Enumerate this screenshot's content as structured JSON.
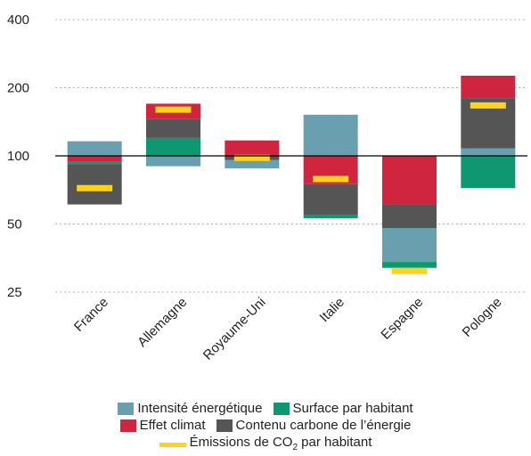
{
  "chart_data": {
    "type": "bar",
    "y_scale": "log",
    "ylim": [
      25,
      400
    ],
    "y_ticks": [
      "25",
      "50",
      "100",
      "200",
      "400"
    ],
    "y_tick_values": [
      25,
      50,
      100,
      200,
      400
    ],
    "baseline": 100,
    "categories": [
      "France",
      "Allemagne",
      "Royaume-Uni",
      "Italie",
      "Espagne",
      "Pologne"
    ],
    "series": [
      {
        "name": "Intensité énergétique",
        "key": "intensite",
        "color": "#6a9fb0"
      },
      {
        "name": "Surface par habitant",
        "key": "surface",
        "color": "#0e9872"
      },
      {
        "name": "Effet climat",
        "key": "climat",
        "color": "#d0253f"
      },
      {
        "name": "Contenu carbone de l’énergie",
        "key": "carbone",
        "color": "#555555"
      }
    ],
    "stacks": [
      {
        "category": "France",
        "segments": [
          {
            "key": "intensite",
            "from": 100,
            "to": 116
          },
          {
            "key": "climat",
            "from": 100,
            "to": 94
          },
          {
            "key": "surface",
            "from": 94,
            "to": 92
          },
          {
            "key": "carbone",
            "from": 92,
            "to": 61
          }
        ]
      },
      {
        "category": "Allemagne",
        "segments": [
          {
            "key": "surface",
            "from": 100,
            "to": 120
          },
          {
            "key": "carbone",
            "from": 120,
            "to": 146
          },
          {
            "key": "climat",
            "from": 146,
            "to": 170
          },
          {
            "key": "intensite",
            "from": 100,
            "to": 90
          }
        ]
      },
      {
        "category": "Royaume-Uni",
        "segments": [
          {
            "key": "climat",
            "from": 100,
            "to": 117
          },
          {
            "key": "carbone",
            "from": 100,
            "to": 96
          },
          {
            "key": "intensite",
            "from": 96,
            "to": 88
          }
        ]
      },
      {
        "category": "Italie",
        "segments": [
          {
            "key": "intensite",
            "from": 100,
            "to": 152
          },
          {
            "key": "climat",
            "from": 100,
            "to": 75
          },
          {
            "key": "carbone",
            "from": 75,
            "to": 55
          },
          {
            "key": "surface",
            "from": 55,
            "to": 53
          }
        ]
      },
      {
        "category": "Espagne",
        "segments": [
          {
            "key": "climat",
            "from": 100,
            "to": 61
          },
          {
            "key": "carbone",
            "from": 61,
            "to": 48
          },
          {
            "key": "intensite",
            "from": 48,
            "to": 34
          },
          {
            "key": "surface",
            "from": 34,
            "to": 32
          }
        ]
      },
      {
        "category": "Pologne",
        "segments": [
          {
            "key": "intensite",
            "from": 100,
            "to": 108
          },
          {
            "key": "carbone",
            "from": 108,
            "to": 180
          },
          {
            "key": "climat",
            "from": 180,
            "to": 226
          },
          {
            "key": "surface",
            "from": 100,
            "to": 72
          }
        ]
      }
    ],
    "co2_per_capita": {
      "name": "Émissions de CO₂ par habitant",
      "color": "#ffd21f",
      "values": [
        72,
        160,
        98,
        79,
        31,
        167
      ]
    }
  },
  "legend": {
    "row1": [
      "Intensité énergétique",
      "Surface par habitant"
    ],
    "row2": [
      "Effet climat",
      "Contenu carbone de l’énergie"
    ],
    "row3_prefix": "Émissions de CO",
    "row3_sub": "2",
    "row3_suffix": " par habitant"
  }
}
